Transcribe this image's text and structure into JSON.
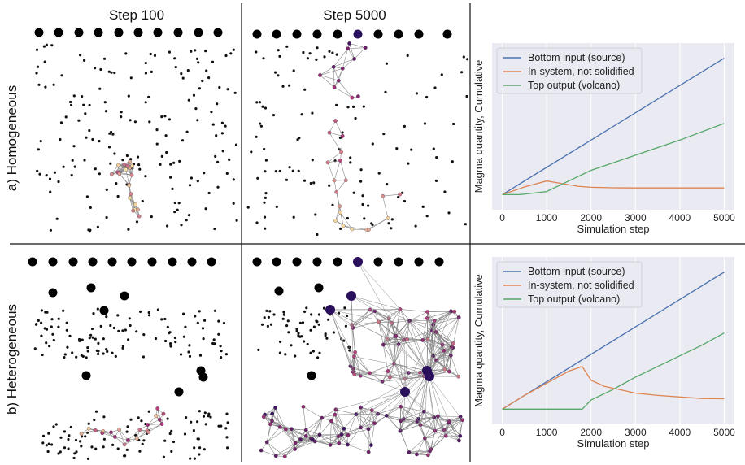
{
  "columns": [
    "Step 100",
    "Step 5000"
  ],
  "rows": [
    "a) Homogeneous",
    "b) Heterogeneous"
  ],
  "colors": {
    "source": "#4c72b0",
    "insystem": "#dd8452",
    "volcano": "#55a868",
    "plot_bg": "#eaeaf2",
    "edge": "#888888",
    "node_low": "#2a0f5c",
    "node_mid": "#b5367a",
    "node_high": "#fde9a5"
  },
  "chart_data": [
    {
      "type": "line",
      "panel": "a",
      "xlabel": "Simulation step",
      "ylabel": "Magma quantity, Cumulative",
      "xticks": [
        0,
        1000,
        2000,
        3000,
        4000,
        5000
      ],
      "xlim": [
        -230,
        5230
      ],
      "ylim": [
        -10,
        100
      ],
      "legend": "top-left",
      "grid": true,
      "series": [
        {
          "name": "Bottom input (source)",
          "key": "source",
          "x": [
            0,
            5000
          ],
          "y": [
            0,
            90
          ]
        },
        {
          "name": "In-system, not solidified",
          "key": "insystem",
          "x": [
            0,
            500,
            1000,
            1300,
            1700,
            2000,
            2500,
            3000,
            4000,
            5000
          ],
          "y": [
            0,
            5,
            9,
            7.5,
            5.5,
            4.8,
            4.5,
            4.4,
            4.4,
            4.4
          ]
        },
        {
          "name": "Top output (volcano)",
          "key": "volcano",
          "x": [
            0,
            400,
            1000,
            1500,
            2000,
            3000,
            4000,
            5000
          ],
          "y": [
            0,
            0,
            2,
            9,
            16,
            26,
            36,
            47
          ]
        }
      ]
    },
    {
      "type": "line",
      "panel": "b",
      "xlabel": "Simulation step",
      "ylabel": "Magma quantity, Cumulative",
      "xticks": [
        0,
        1000,
        2000,
        3000,
        4000,
        5000
      ],
      "xlim": [
        -230,
        5230
      ],
      "ylim": [
        -10,
        100
      ],
      "legend": "top-left",
      "grid": true,
      "series": [
        {
          "name": "Bottom input (source)",
          "key": "source",
          "x": [
            0,
            5000
          ],
          "y": [
            0,
            90
          ]
        },
        {
          "name": "In-system, not solidified",
          "key": "insystem",
          "x": [
            0,
            500,
            1000,
            1500,
            1800,
            2000,
            2300,
            2700,
            3000,
            3500,
            4000,
            4500,
            5000
          ],
          "y": [
            0,
            9,
            17,
            25,
            28,
            19,
            15,
            12.5,
            10.5,
            9,
            8,
            7,
            6.8
          ]
        },
        {
          "name": "Top output (volcano)",
          "key": "volcano",
          "x": [
            0,
            1800,
            2000,
            2500,
            3000,
            3500,
            4000,
            4500,
            5000
          ],
          "y": [
            0,
            0,
            6,
            13,
            21,
            28,
            35,
            42,
            50
          ]
        }
      ]
    }
  ]
}
